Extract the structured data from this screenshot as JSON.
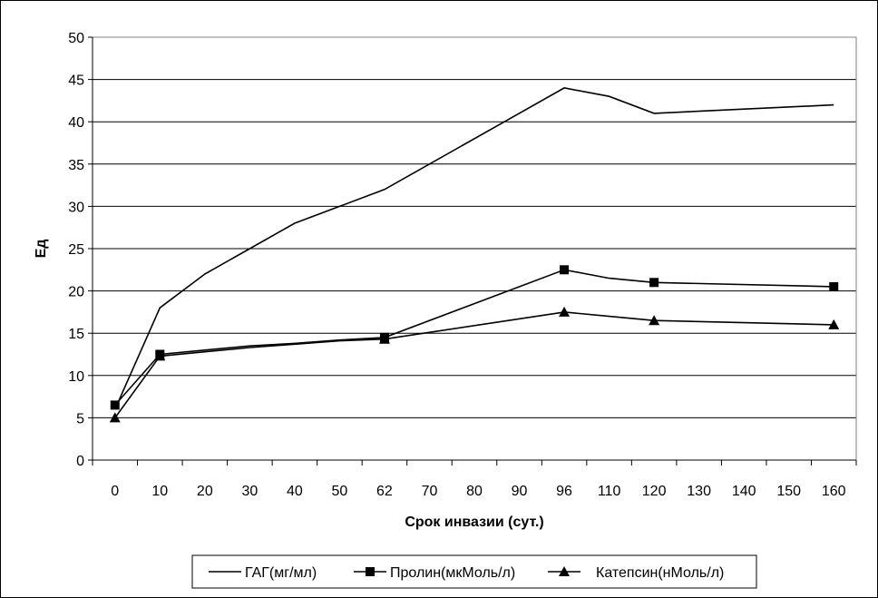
{
  "chart_data": {
    "type": "line",
    "title": "",
    "xlabel": "Срок инвазии (сут.)",
    "ylabel": "Ед",
    "categories": [
      "0",
      "10",
      "20",
      "30",
      "40",
      "50",
      "62",
      "70",
      "80",
      "90",
      "96",
      "110",
      "120",
      "130",
      "140",
      "150",
      "160"
    ],
    "ylim": [
      0,
      50
    ],
    "yticks": [
      0,
      5,
      10,
      15,
      20,
      25,
      30,
      35,
      40,
      45,
      50
    ],
    "grid": "horizontal",
    "legend_position": "bottom",
    "series": [
      {
        "name": "ГАГ(мг/мл)",
        "marker": "none",
        "color": "#000000",
        "values": [
          6.0,
          18.0,
          22.0,
          25.0,
          28.0,
          30.0,
          32.0,
          null,
          null,
          null,
          44.0,
          43.0,
          41.0,
          null,
          null,
          null,
          42.0
        ]
      },
      {
        "name": "Пролин(мкМоль/л)",
        "marker": "square",
        "color": "#000000",
        "marked": [
          0,
          1,
          6,
          10,
          12,
          16
        ],
        "values": [
          6.5,
          12.5,
          13.0,
          13.5,
          13.8,
          14.2,
          14.5,
          null,
          null,
          null,
          22.5,
          21.5,
          21.0,
          null,
          null,
          null,
          20.5
        ]
      },
      {
        "name": "Катепсин(нМоль/л)",
        "marker": "triangle",
        "color": "#000000",
        "marked": [
          0,
          1,
          6,
          10,
          12,
          16
        ],
        "values": [
          5.0,
          12.3,
          12.8,
          13.3,
          13.7,
          14.1,
          14.3,
          null,
          null,
          null,
          17.5,
          17.0,
          16.5,
          null,
          null,
          null,
          16.0
        ]
      }
    ]
  }
}
